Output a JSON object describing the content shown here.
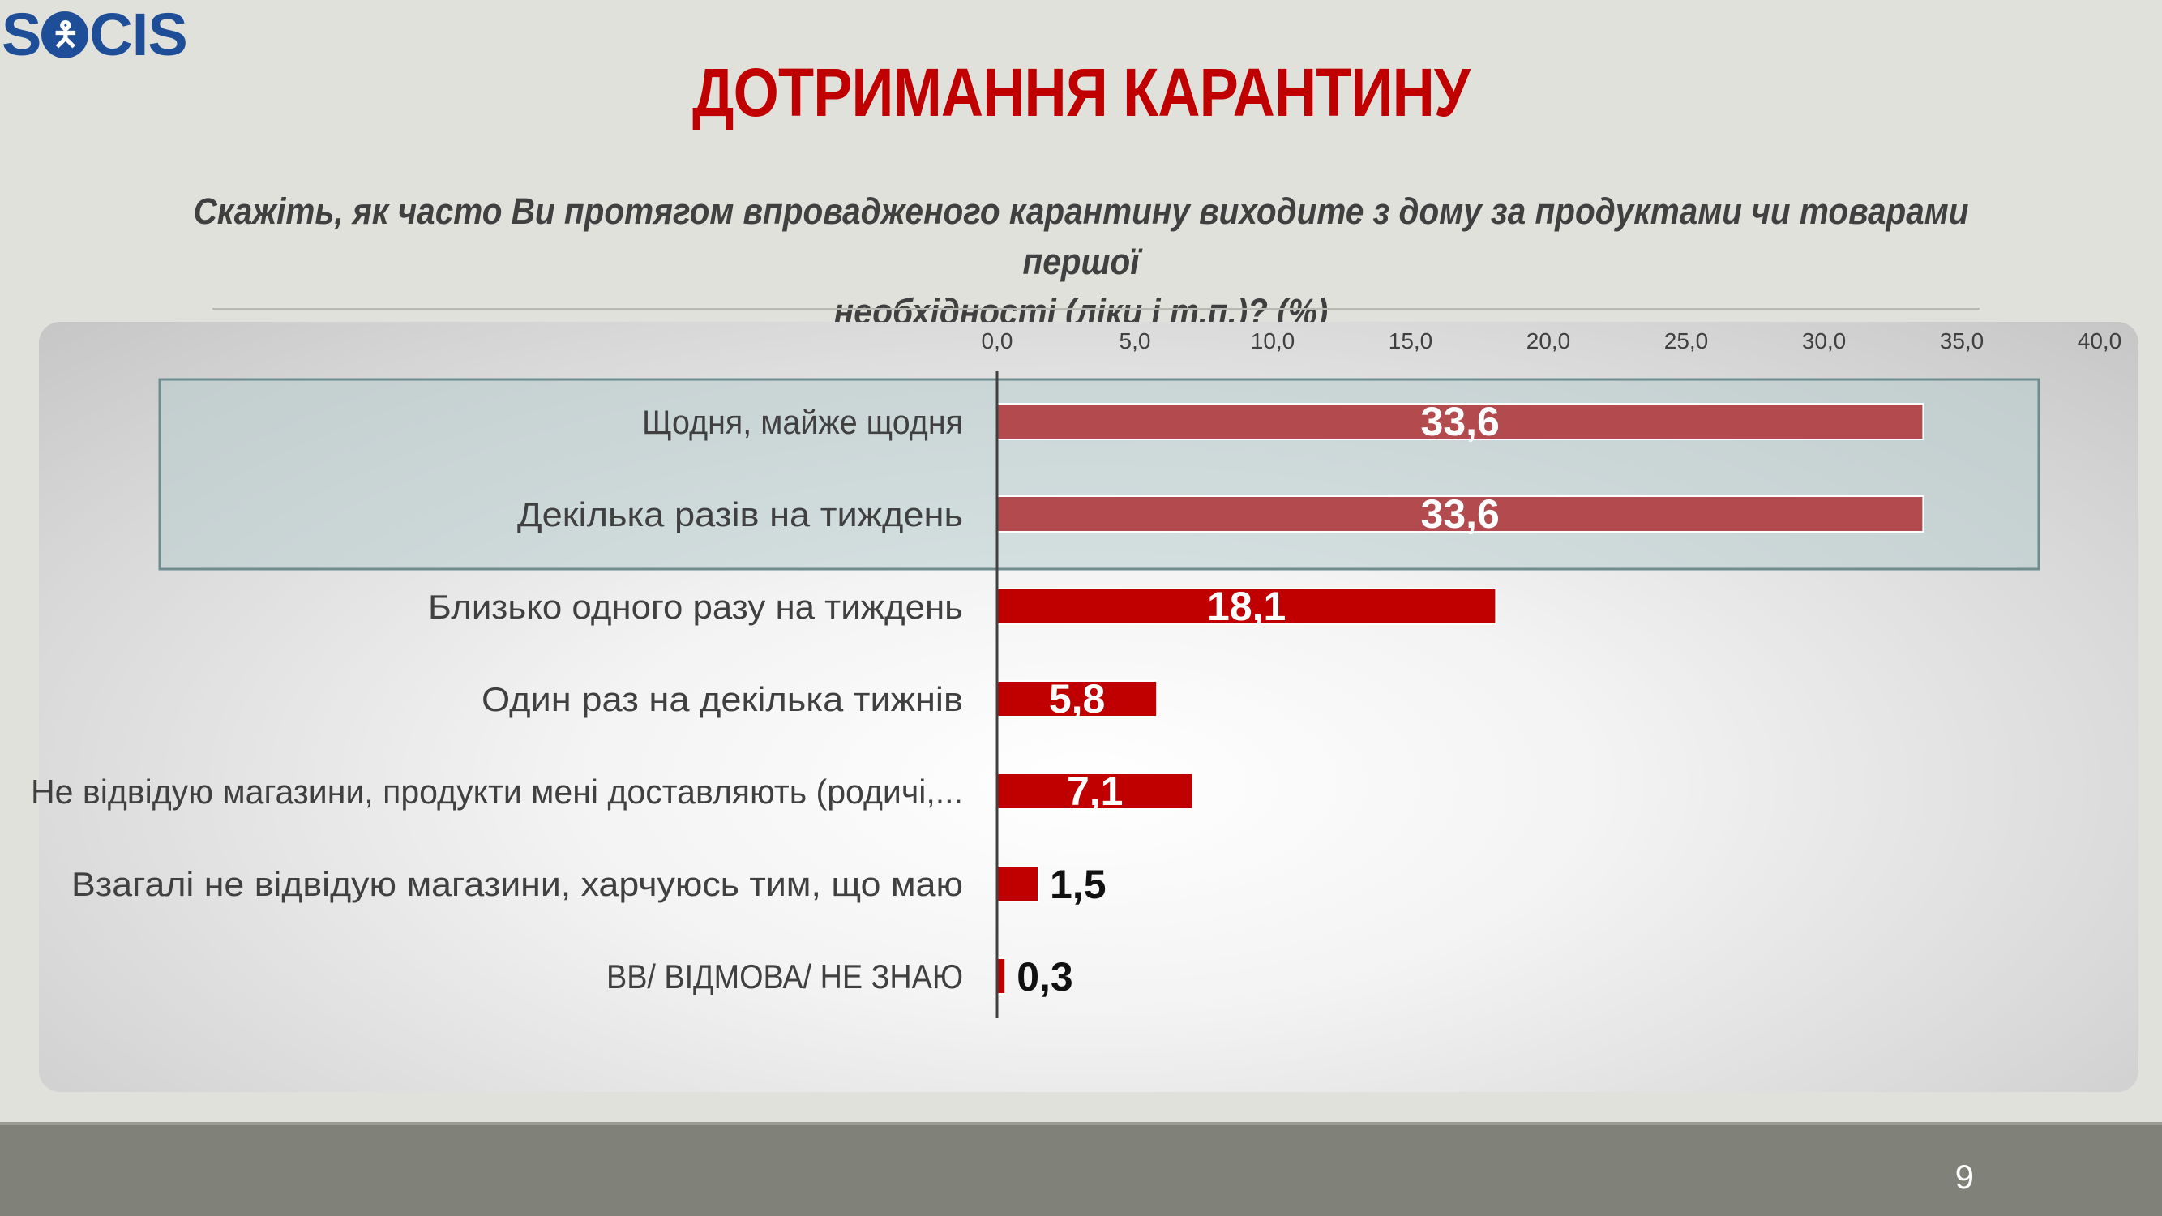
{
  "logo": {
    "text_left": "S",
    "text_right": "CIS"
  },
  "title": "ДОТРИМАННЯ КАРАНТИНУ",
  "question_line1": "Скажіть, як часто Ви протягом впровадженого карантину виходите з дому за продуктами чи товарами першої",
  "question_line2": "необхідності (ліки і т.п.)? (%)",
  "page_number": "9",
  "colors": {
    "title": "#c00000",
    "bar_primary": "#c00000",
    "bar_highlight": "#b24a4e",
    "highlight_box": "#b8cccd",
    "logo": "#1f4e99"
  },
  "chart_data": {
    "type": "bar",
    "orientation": "horizontal",
    "xlim": [
      0,
      40
    ],
    "ticks": [
      "0,0",
      "5,0",
      "10,0",
      "15,0",
      "20,0",
      "25,0",
      "30,0",
      "35,0",
      "40,0"
    ],
    "tick_values": [
      0,
      5,
      10,
      15,
      20,
      25,
      30,
      35,
      40
    ],
    "categories": [
      "Щодня, майже щодня",
      "Декілька разів на тиждень",
      "Близько одного разу на тиждень",
      "Один раз на декілька тижнів",
      "Не відвідую магазини, продукти мені доставляють (родичі,...",
      "Взагалі не відвідую магазини, харчуюсь тим, що маю",
      "ВВ/ ВІДМОВА/ НЕ ЗНАЮ"
    ],
    "values": [
      33.6,
      33.6,
      18.1,
      5.8,
      7.1,
      1.5,
      0.3
    ],
    "value_labels": [
      "33,6",
      "33,6",
      "18,1",
      "5,8",
      "7,1",
      "1,5",
      "0,3"
    ],
    "highlighted": [
      true,
      true,
      false,
      false,
      false,
      false,
      false
    ],
    "label_inside": [
      true,
      true,
      true,
      true,
      true,
      false,
      false
    ],
    "title": "",
    "xlabel": "",
    "ylabel": "",
    "grid": false,
    "legend": "none"
  }
}
